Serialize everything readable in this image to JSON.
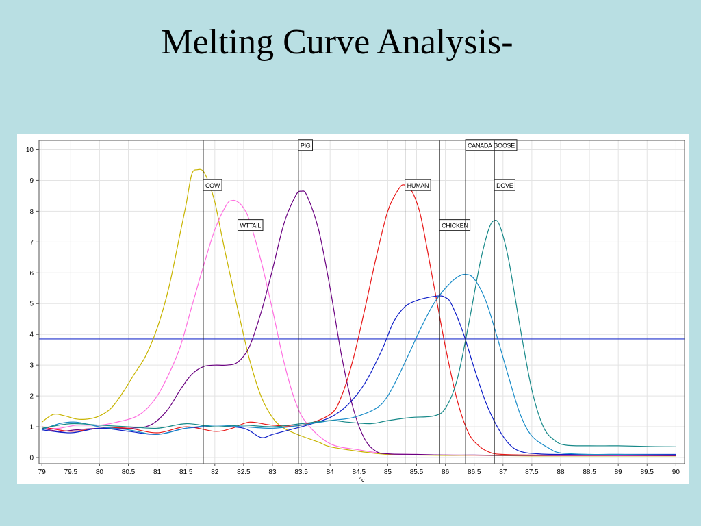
{
  "slide": {
    "title": "Melting Curve Analysis-"
  },
  "chart_data": {
    "type": "line",
    "title": "",
    "xlabel": "°c",
    "ylabel": "",
    "xlim": [
      78.95,
      90.15
    ],
    "ylim": [
      -0.2,
      10.3
    ],
    "x_ticks": [
      79,
      79.5,
      80,
      80.5,
      81,
      81.5,
      82,
      82.5,
      83,
      83.5,
      84,
      84.5,
      85,
      85.5,
      86,
      86.5,
      87,
      87.5,
      88,
      88.5,
      89,
      89.5,
      90
    ],
    "x_tick_labels": [
      "79",
      "79.5",
      "80",
      "80.5",
      "81",
      "81.5",
      "82",
      "82.5",
      "83",
      "83.5",
      "84",
      "84.5",
      "85",
      "85.5",
      "86",
      "86.5",
      "87",
      "87.5",
      "88",
      "88.5",
      "89",
      "89.5",
      "90"
    ],
    "y_ticks": [
      0,
      1,
      2,
      3,
      4,
      5,
      6,
      7,
      8,
      9,
      10
    ],
    "y_tick_labels": [
      "0",
      "1",
      "2",
      "3",
      "4",
      "5",
      "6",
      "7",
      "8",
      "9",
      "10"
    ],
    "grid": true,
    "threshold": {
      "y": 3.85,
      "color": "#2233cc"
    },
    "markers": [
      {
        "label": "COW",
        "x": 81.8,
        "label_y": 8.85
      },
      {
        "label": "WTTAIL",
        "x": 82.4,
        "label_y": 7.55
      },
      {
        "label": "PIG",
        "x": 83.45,
        "label_y": 10.15
      },
      {
        "label": "HUMAN",
        "x": 85.3,
        "label_y": 8.85
      },
      {
        "label": "CHICKEN",
        "x": 85.9,
        "label_y": 7.55
      },
      {
        "label": "CANADA GOOSE",
        "x": 86.35,
        "label_y": 10.15
      },
      {
        "label": "DOVE",
        "x": 86.85,
        "label_y": 8.85
      }
    ],
    "series": [
      {
        "color": "#c8b400",
        "x": [
          79,
          79.2,
          79.4,
          79.6,
          79.8,
          80,
          80.2,
          80.4,
          80.6,
          80.8,
          81,
          81.2,
          81.4,
          81.5,
          81.6,
          81.7,
          81.8,
          81.9,
          82,
          82.1,
          82.2,
          82.4,
          82.6,
          82.8,
          83,
          83.2,
          83.5,
          83.8,
          84,
          84.5,
          85,
          85.5,
          86,
          86.5,
          87,
          87.5,
          88,
          89,
          90
        ],
        "y": [
          1.15,
          1.4,
          1.35,
          1.25,
          1.25,
          1.35,
          1.6,
          2.1,
          2.7,
          3.3,
          4.2,
          5.5,
          7.3,
          8.2,
          9.2,
          9.35,
          9.3,
          8.9,
          8.3,
          7.4,
          6.5,
          4.8,
          3.2,
          2.0,
          1.3,
          0.95,
          0.7,
          0.5,
          0.35,
          0.2,
          0.1,
          0.08,
          0.07,
          0.07,
          0.06,
          0.05,
          0.05,
          0.05,
          0.05
        ]
      },
      {
        "color": "#ff6fe0",
        "x": [
          79,
          79.3,
          79.6,
          80,
          80.3,
          80.6,
          80.8,
          81,
          81.2,
          81.4,
          81.6,
          81.8,
          82,
          82.2,
          82.3,
          82.4,
          82.5,
          82.6,
          82.8,
          83,
          83.2,
          83.4,
          83.6,
          84,
          84.5,
          85,
          85.5,
          86,
          87,
          88,
          90
        ],
        "y": [
          0.95,
          0.95,
          1.05,
          1.05,
          1.15,
          1.3,
          1.55,
          2.0,
          2.7,
          3.6,
          4.9,
          6.2,
          7.4,
          8.2,
          8.35,
          8.3,
          8.1,
          7.7,
          6.4,
          4.8,
          3.1,
          1.8,
          1.1,
          0.45,
          0.25,
          0.12,
          0.1,
          0.08,
          0.07,
          0.06,
          0.06
        ]
      },
      {
        "color": "#6a0080",
        "x": [
          79,
          79.3,
          79.6,
          80,
          80.5,
          80.8,
          81,
          81.2,
          81.4,
          81.6,
          81.8,
          82,
          82.2,
          82.4,
          82.6,
          82.8,
          83,
          83.2,
          83.4,
          83.5,
          83.6,
          83.8,
          84,
          84.2,
          84.4,
          84.6,
          84.8,
          85,
          85.5,
          86,
          86.5,
          87,
          88,
          89,
          90
        ],
        "y": [
          0.95,
          0.85,
          0.9,
          0.95,
          0.95,
          1.0,
          1.2,
          1.6,
          2.2,
          2.7,
          2.95,
          3.0,
          3.0,
          3.1,
          3.6,
          4.7,
          6.1,
          7.6,
          8.5,
          8.65,
          8.5,
          7.4,
          5.5,
          3.3,
          1.6,
          0.6,
          0.2,
          0.12,
          0.1,
          0.08,
          0.08,
          0.07,
          0.07,
          0.07,
          0.06
        ]
      },
      {
        "color": "#e81818",
        "x": [
          79,
          79.5,
          80,
          80.5,
          81,
          81.5,
          82,
          82.3,
          82.6,
          83,
          83.5,
          84,
          84.2,
          84.4,
          84.6,
          84.8,
          85,
          85.2,
          85.3,
          85.4,
          85.5,
          85.6,
          85.8,
          86,
          86.2,
          86.4,
          86.6,
          86.8,
          87,
          87.5,
          88,
          89,
          90
        ],
        "y": [
          1.0,
          0.85,
          0.95,
          0.95,
          0.8,
          1.0,
          0.85,
          0.95,
          1.15,
          1.05,
          1.05,
          1.4,
          2.0,
          3.2,
          4.8,
          6.5,
          8.0,
          8.75,
          8.85,
          8.7,
          8.3,
          7.6,
          5.6,
          3.6,
          1.9,
          0.8,
          0.35,
          0.15,
          0.1,
          0.08,
          0.08,
          0.08,
          0.08
        ]
      },
      {
        "color": "#1020c8",
        "x": [
          79,
          79.5,
          80,
          80.5,
          81,
          81.5,
          82,
          82.5,
          82.8,
          83,
          83.3,
          83.6,
          84,
          84.3,
          84.6,
          84.9,
          85.1,
          85.3,
          85.5,
          85.7,
          85.9,
          86,
          86.1,
          86.3,
          86.5,
          86.7,
          86.9,
          87.1,
          87.3,
          87.6,
          88,
          89,
          90
        ],
        "y": [
          0.9,
          0.8,
          0.95,
          0.85,
          0.75,
          0.95,
          1.0,
          0.95,
          0.65,
          0.75,
          0.9,
          1.05,
          1.3,
          1.7,
          2.4,
          3.5,
          4.4,
          4.9,
          5.1,
          5.2,
          5.25,
          5.2,
          5.0,
          4.1,
          2.9,
          1.8,
          1.0,
          0.45,
          0.2,
          0.12,
          0.1,
          0.1,
          0.1
        ]
      },
      {
        "color": "#1a8cc8",
        "x": [
          79,
          79.3,
          79.6,
          80,
          80.5,
          81,
          81.5,
          82,
          82.5,
          83,
          83.5,
          84,
          84.4,
          84.8,
          85,
          85.2,
          85.4,
          85.6,
          85.8,
          86,
          86.2,
          86.35,
          86.5,
          86.7,
          86.9,
          87.1,
          87.3,
          87.5,
          87.8,
          88,
          88.5,
          89,
          90
        ],
        "y": [
          0.9,
          1.1,
          1.15,
          1.0,
          0.9,
          0.75,
          0.95,
          1.05,
          1.0,
          0.95,
          1.05,
          1.2,
          1.3,
          1.6,
          2.0,
          2.7,
          3.5,
          4.3,
          5.0,
          5.5,
          5.85,
          5.95,
          5.8,
          5.1,
          3.9,
          2.6,
          1.4,
          0.7,
          0.3,
          0.15,
          0.1,
          0.1,
          0.08
        ]
      },
      {
        "color": "#168888",
        "x": [
          79,
          79.5,
          80,
          80.5,
          81,
          81.5,
          82,
          82.5,
          83,
          83.5,
          84,
          84.3,
          84.7,
          85,
          85.4,
          85.8,
          86,
          86.2,
          86.4,
          86.6,
          86.75,
          86.85,
          86.95,
          87.1,
          87.3,
          87.5,
          87.7,
          87.9,
          88.1,
          88.5,
          89,
          89.5,
          90
        ],
        "y": [
          0.95,
          1.1,
          1.05,
          1.0,
          0.95,
          1.1,
          1.0,
          1.05,
          1.0,
          1.1,
          1.2,
          1.15,
          1.1,
          1.2,
          1.3,
          1.35,
          1.6,
          2.5,
          4.3,
          6.3,
          7.4,
          7.7,
          7.5,
          6.4,
          4.2,
          2.2,
          1.0,
          0.55,
          0.4,
          0.38,
          0.38,
          0.36,
          0.35
        ]
      }
    ]
  }
}
